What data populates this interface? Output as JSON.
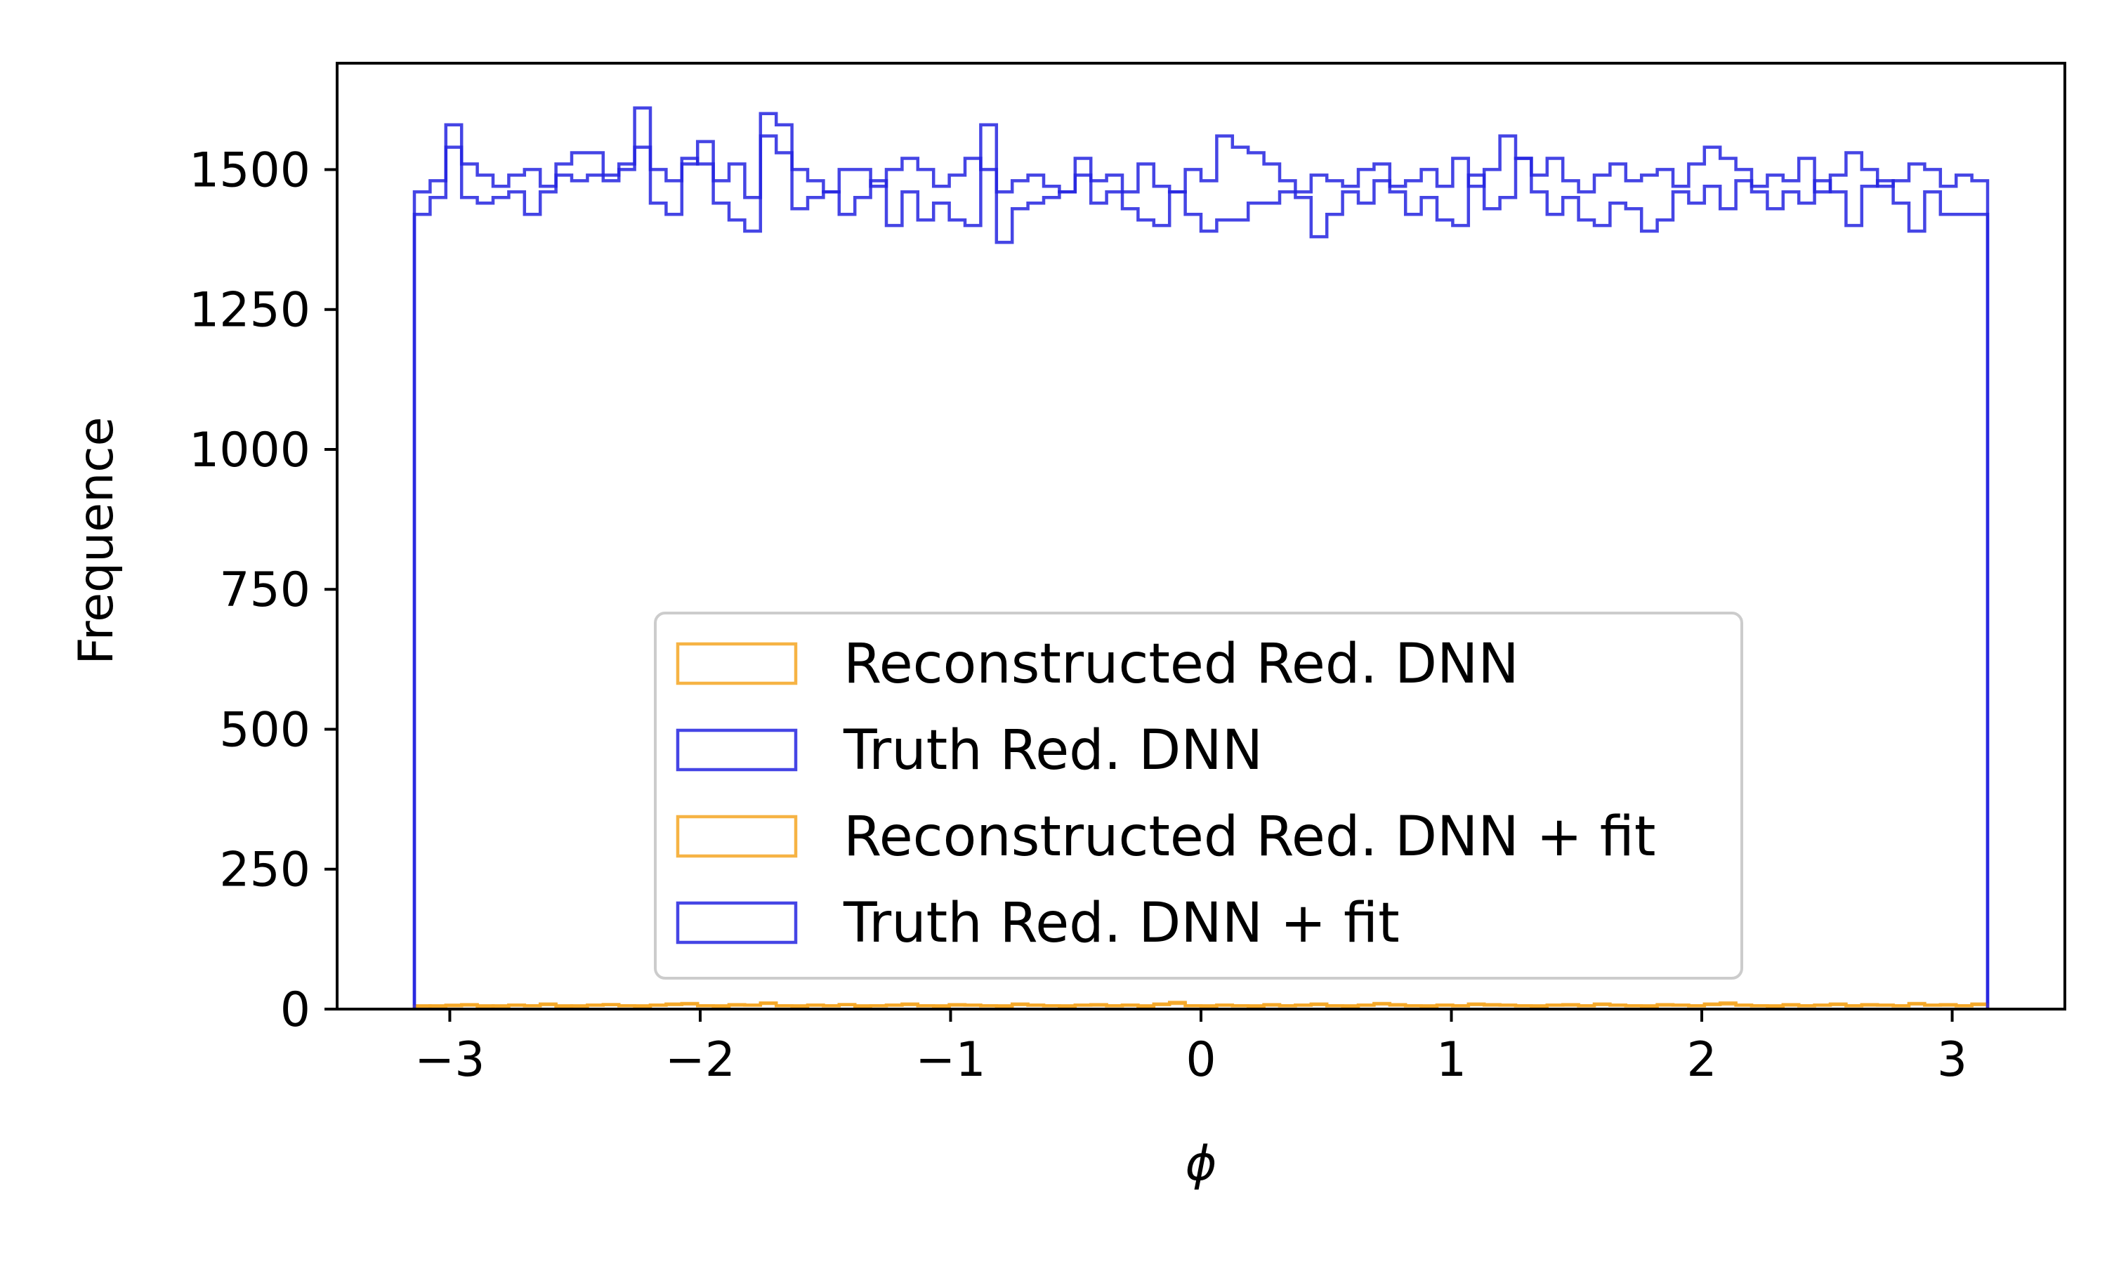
{
  "chart_data": {
    "type": "histogram",
    "xlabel": "ϕ",
    "ylabel": "Frequence",
    "xlim": [
      -3.45,
      3.45
    ],
    "ylim": [
      0,
      1690
    ],
    "xticks": [
      -3,
      -2,
      -1,
      0,
      1,
      2,
      3
    ],
    "xtick_labels": [
      "−3",
      "−2",
      "−1",
      "0",
      "1",
      "2",
      "3"
    ],
    "yticks": [
      0,
      250,
      500,
      750,
      1000,
      1250,
      1500
    ],
    "ytick_labels": [
      "0",
      "250",
      "500",
      "750",
      "1000",
      "1250",
      "1500"
    ],
    "bin_range": [
      -3.1416,
      3.1416
    ],
    "bins": 100,
    "legend_position": "lower center",
    "series": [
      {
        "name": "Reconstructed Red. DNN",
        "color": "#f5a623",
        "values": [
          6,
          5,
          7,
          8,
          6,
          5,
          7,
          6,
          9,
          5,
          6,
          7,
          8,
          6,
          5,
          7,
          9,
          10,
          6,
          5,
          8,
          7,
          11,
          6,
          5,
          7,
          6,
          8,
          5,
          6,
          7,
          9,
          6,
          5,
          8,
          7,
          6,
          5,
          9,
          7,
          6,
          5,
          7,
          8,
          6,
          7,
          5,
          9,
          12,
          6,
          5,
          7,
          6,
          5,
          8,
          6,
          7,
          9,
          6,
          5,
          7,
          10,
          8,
          6,
          5,
          7,
          6,
          9,
          8,
          7,
          6,
          5,
          7,
          8,
          6,
          9,
          7,
          6,
          5,
          8,
          7,
          6,
          9,
          11,
          7,
          6,
          5,
          8,
          6,
          7,
          9,
          6,
          8,
          7,
          6,
          10,
          7,
          8,
          6,
          9
        ]
      },
      {
        "name": "Truth Red. DNN",
        "color": "#2525e0",
        "values": [
          1460,
          1480,
          1580,
          1510,
          1490,
          1470,
          1490,
          1500,
          1470,
          1510,
          1530,
          1530,
          1480,
          1510,
          1610,
          1500,
          1480,
          1510,
          1550,
          1480,
          1510,
          1450,
          1600,
          1580,
          1500,
          1480,
          1460,
          1500,
          1500,
          1470,
          1500,
          1520,
          1500,
          1470,
          1490,
          1520,
          1500,
          1460,
          1480,
          1490,
          1470,
          1460,
          1520,
          1480,
          1490,
          1460,
          1510,
          1470,
          1460,
          1500,
          1480,
          1560,
          1540,
          1530,
          1510,
          1480,
          1460,
          1490,
          1480,
          1470,
          1500,
          1510,
          1470,
          1480,
          1500,
          1470,
          1520,
          1470,
          1500,
          1560,
          1520,
          1490,
          1520,
          1480,
          1460,
          1490,
          1510,
          1480,
          1490,
          1500,
          1470,
          1510,
          1540,
          1520,
          1500,
          1470,
          1490,
          1480,
          1520,
          1460,
          1490,
          1530,
          1500,
          1470,
          1480,
          1510,
          1500,
          1470,
          1490,
          1480
        ]
      },
      {
        "name": "Reconstructed Red. DNN + fit",
        "color": "#f5a623",
        "values": [
          5,
          6,
          6,
          7,
          5,
          6,
          7,
          6,
          8,
          6,
          5,
          7,
          8,
          6,
          6,
          7,
          8,
          9,
          6,
          6,
          7,
          7,
          10,
          6,
          6,
          7,
          6,
          8,
          6,
          6,
          7,
          8,
          6,
          6,
          7,
          7,
          6,
          6,
          8,
          7,
          6,
          6,
          7,
          7,
          6,
          7,
          6,
          8,
          10,
          6,
          6,
          7,
          6,
          6,
          7,
          6,
          7,
          8,
          6,
          6,
          7,
          9,
          7,
          6,
          6,
          7,
          6,
          8,
          7,
          7,
          6,
          6,
          7,
          7,
          6,
          8,
          7,
          6,
          6,
          7,
          7,
          6,
          8,
          9,
          7,
          6,
          6,
          7,
          6,
          7,
          8,
          6,
          7,
          7,
          6,
          9,
          7,
          7,
          6,
          8
        ]
      },
      {
        "name": "Truth Red. DNN + fit",
        "color": "#2525e0",
        "values": [
          1420,
          1450,
          1540,
          1450,
          1440,
          1450,
          1460,
          1420,
          1460,
          1490,
          1480,
          1490,
          1490,
          1500,
          1540,
          1440,
          1420,
          1520,
          1510,
          1440,
          1410,
          1390,
          1560,
          1530,
          1430,
          1450,
          1460,
          1420,
          1450,
          1480,
          1400,
          1460,
          1410,
          1440,
          1410,
          1400,
          1580,
          1370,
          1430,
          1440,
          1450,
          1460,
          1490,
          1440,
          1460,
          1430,
          1410,
          1400,
          1460,
          1420,
          1390,
          1410,
          1410,
          1440,
          1440,
          1460,
          1450,
          1380,
          1420,
          1460,
          1440,
          1480,
          1460,
          1420,
          1450,
          1410,
          1400,
          1490,
          1430,
          1450,
          1520,
          1460,
          1420,
          1450,
          1410,
          1400,
          1440,
          1430,
          1390,
          1410,
          1460,
          1440,
          1470,
          1430,
          1480,
          1460,
          1430,
          1460,
          1440,
          1480,
          1460,
          1400,
          1470,
          1480,
          1440,
          1390,
          1460,
          1420,
          1420,
          1420
        ]
      }
    ]
  }
}
